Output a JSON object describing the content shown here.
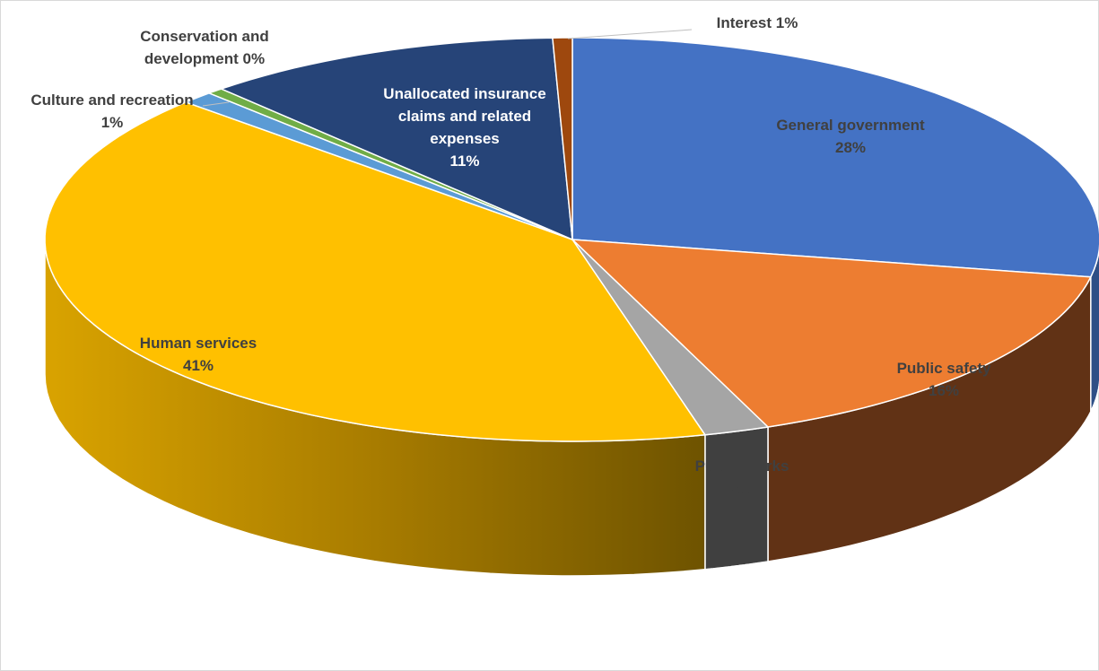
{
  "chart_data": {
    "type": "pie",
    "style": "3d",
    "title": "",
    "slices": [
      {
        "name": "General government",
        "label_line1": "General government",
        "label_line2": "28%",
        "value": 28,
        "color": "#4472C4",
        "side_color": "#2E4F86"
      },
      {
        "name": "Public safety",
        "label_line1": "Public safety",
        "label_line2": "16%",
        "value": 16,
        "color": "#ED7D31",
        "side_color": "#613215"
      },
      {
        "name": "Public works",
        "label_line1": "Public works",
        "label_line2": "2%",
        "value": 2,
        "color": "#A5A5A5",
        "side_color": "#404040"
      },
      {
        "name": "Human services",
        "label_line1": "Human services",
        "label_line2": "41%",
        "value": 41,
        "color": "#FFC000",
        "side_color": "#B28300"
      },
      {
        "name": "Culture and recreation",
        "label_line1": "Culture and recreation",
        "label_line2": "1%",
        "value": 1,
        "color": "#5B9BD5",
        "side_color": "#2F5B82"
      },
      {
        "name": "Conservation and development",
        "label_line1": "Conservation and",
        "label_line2": "development 0%",
        "value": 0.5,
        "color": "#70AD47",
        "side_color": "#3E6326"
      },
      {
        "name": "Unallocated insurance claims and related expenses",
        "label_line1": "Unallocated insurance",
        "label_line2": "claims and related",
        "label_line3": "expenses",
        "label_line4": "11%",
        "value": 11,
        "color": "#264478",
        "side_color": "#15284A"
      },
      {
        "name": "Interest",
        "label_line1": "Interest 1%",
        "value": 0.6,
        "color": "#9E480E",
        "side_color": "#5A2808"
      }
    ],
    "legend": "none",
    "data_labels": "on-slice"
  }
}
